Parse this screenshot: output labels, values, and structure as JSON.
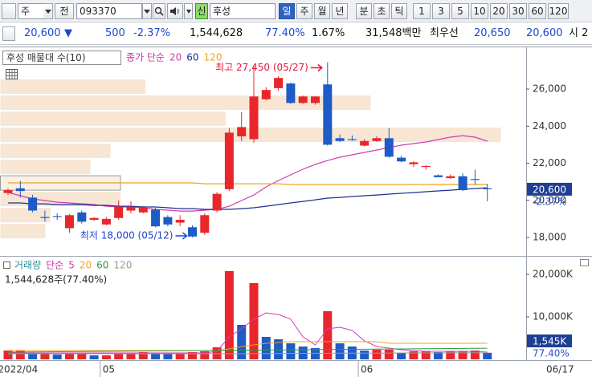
{
  "toolbar": {
    "market": "주",
    "type": "전",
    "code": "093370",
    "badge": "신",
    "name": "후성",
    "periods": [
      "일",
      "주",
      "월",
      "년",
      "분",
      "초",
      "틱"
    ],
    "intervals": [
      "1",
      "3",
      "5",
      "10",
      "20",
      "30",
      "60",
      "120"
    ]
  },
  "quote": {
    "price": "20,600",
    "arrow": "▼",
    "change": "500",
    "change_rate": "-2.37%",
    "volume": "1,544,628",
    "volume_rate": "77.40%",
    "turnover": "1.67%",
    "amount": "31,548백만",
    "best_label": "최우선",
    "ask": "20,650",
    "bid": "20,600",
    "extra": "시 2"
  },
  "chart_data": [
    {
      "type": "candlestick",
      "title": "후성 매물대 수(10)",
      "ma_label": "종가 단순",
      "ma_label_color": "#c8309a",
      "up_color": "#e8262b",
      "down_color": "#1f5bc6",
      "open": [
        20400,
        20650,
        20150,
        19100,
        19150,
        18500,
        19350,
        18950,
        18700,
        19050,
        19450,
        19350,
        19500,
        19100,
        18800,
        18550,
        18250,
        19450,
        20600,
        23450,
        23300,
        25450,
        26050,
        26300,
        25250,
        25250,
        26250,
        23350,
        23300,
        22950,
        23200,
        23350,
        22300,
        21950,
        21800,
        21350,
        21200,
        21300,
        21150,
        20650
      ],
      "high": [
        20650,
        21050,
        20300,
        19450,
        19300,
        19250,
        19450,
        19100,
        19100,
        20000,
        19950,
        19700,
        19600,
        19200,
        19200,
        18650,
        19300,
        20450,
        23900,
        24750,
        27250,
        26100,
        26700,
        26350,
        25650,
        25600,
        27450,
        23550,
        23500,
        23300,
        23450,
        23900,
        22400,
        22100,
        21900,
        21400,
        21400,
        21450,
        21650,
        20900
      ],
      "low": [
        20300,
        20150,
        19350,
        18850,
        18950,
        18250,
        18750,
        18900,
        18650,
        18950,
        19300,
        19300,
        18550,
        18600,
        18600,
        18000,
        18150,
        19350,
        20500,
        23200,
        23100,
        25400,
        25900,
        25200,
        25200,
        25150,
        22950,
        23150,
        23200,
        22900,
        23150,
        22300,
        22050,
        21800,
        21650,
        21250,
        21150,
        20500,
        20850,
        19950
      ],
      "close": [
        20550,
        20500,
        19450,
        19050,
        19100,
        19200,
        18850,
        19050,
        19000,
        19650,
        19650,
        19600,
        18600,
        18700,
        18950,
        18050,
        19200,
        20350,
        23650,
        23950,
        25600,
        25950,
        26600,
        25250,
        25600,
        25600,
        23000,
        23200,
        23250,
        23200,
        23350,
        22350,
        22100,
        22050,
        21850,
        21250,
        21300,
        20550,
        21100,
        20600
      ],
      "series": [
        {
          "name": "20",
          "color": "#d23cb4",
          "values": [
            20420,
            20250,
            20075,
            19990,
            19900,
            19860,
            19815,
            19775,
            19685,
            19645,
            19645,
            19600,
            19515,
            19470,
            19425,
            19425,
            19470,
            19515,
            19685,
            19990,
            20290,
            20725,
            21070,
            21375,
            21675,
            21935,
            22150,
            22325,
            22455,
            22585,
            22715,
            22845,
            22975,
            23060,
            23145,
            23275,
            23405,
            23490,
            23405,
            23190
          ]
        },
        {
          "name": "60",
          "color": "#1f2f8f",
          "values": [
            19860,
            19860,
            19815,
            19815,
            19775,
            19775,
            19775,
            19730,
            19730,
            19685,
            19685,
            19645,
            19645,
            19600,
            19555,
            19555,
            19515,
            19515,
            19515,
            19555,
            19600,
            19685,
            19775,
            19860,
            19945,
            20030,
            20120,
            20160,
            20205,
            20250,
            20290,
            20335,
            20380,
            20420,
            20465,
            20510,
            20550,
            20595,
            20640,
            20680
          ]
        },
        {
          "name": "120",
          "color": "#f0a41c",
          "values": [
            20940,
            20940,
            20940,
            20940,
            20940,
            20940,
            20940,
            20940,
            20940,
            20940,
            20940,
            20940,
            20940,
            20940,
            20940,
            20940,
            20895,
            20895,
            20895,
            20895,
            20895,
            20895,
            20895,
            20855,
            20855,
            20855,
            20855,
            20855,
            20855,
            20855,
            20855,
            20855,
            20855,
            20855,
            20855,
            20855,
            20855,
            20855,
            20855,
            20855
          ]
        }
      ],
      "volume_profile": {
        "color": "#f6e6d3",
        "bins": [
          17910,
          18775,
          19640,
          20505,
          21370,
          22235,
          23100,
          23965,
          24830,
          25695,
          26560
        ],
        "values": [
          9,
          10,
          24,
          24,
          18,
          22,
          100,
          45,
          74,
          29
        ]
      },
      "ylim": [
        17050,
        28120
      ],
      "yticks": [
        {
          "value": 18000,
          "label": "18,000"
        },
        {
          "value": 20000,
          "label": "20,000"
        },
        {
          "value": 22000,
          "label": "22,000"
        },
        {
          "value": 24000,
          "label": "24,000"
        },
        {
          "value": 26000,
          "label": "26,000"
        }
      ],
      "last_price": {
        "value": 20600,
        "label": "20,600"
      },
      "last_change": "-2.37%",
      "annotations": [
        {
          "label": "최고 27,450 (05/27)",
          "value": 27450,
          "color": "#e3173f"
        },
        {
          "label": "최저 18,000 (05/12)",
          "value": 18000,
          "color": "#1c3fd6"
        }
      ]
    },
    {
      "type": "bar",
      "title": "거래량",
      "title_color": "#2a8c9c",
      "ma_label": "단순",
      "ma_label_color": "#c8309a",
      "info": "1,544,628주(77.40%)",
      "up_color": "#e8262b",
      "down_color": "#1f5bc6",
      "categories": [
        "2022/04",
        null,
        null,
        null,
        null,
        null,
        null,
        null,
        "05",
        null,
        null,
        null,
        null,
        null,
        null,
        null,
        null,
        null,
        null,
        null,
        null,
        null,
        null,
        null,
        null,
        null,
        null,
        null,
        null,
        "06",
        null,
        null,
        null,
        null,
        null,
        null,
        null,
        null,
        null,
        "06/17"
      ],
      "values": [
        2075,
        2075,
        1320,
        1320,
        1130,
        1320,
        1320,
        940,
        940,
        1510,
        1510,
        1700,
        1510,
        1320,
        1320,
        1700,
        1890,
        2830,
        20760,
        8115,
        17925,
        5285,
        4720,
        3775,
        3020,
        2640,
        11320,
        3775,
        3020,
        2075,
        2265,
        2265,
        1510,
        1890,
        1890,
        1700,
        1890,
        1890,
        2075,
        1545
      ],
      "series": [
        {
          "name": "5",
          "color": "#d23cb4",
          "values": [
            1510,
            1510,
            1510,
            1510,
            1510,
            1510,
            1510,
            1510,
            1510,
            1510,
            1510,
            1510,
            1510,
            1510,
            1510,
            1510,
            1510,
            1887,
            5284,
            7171,
            9435,
            10945,
            10567,
            9435,
            5284,
            3397,
            7171,
            7548,
            6793,
            4340,
            3019,
            2642,
            2264,
            2076,
            1887,
            1887,
            1887,
            1887,
            1887,
            1698
          ]
        },
        {
          "name": "20",
          "color": "#f0a41c",
          "values": [
            2076,
            2076,
            2076,
            2076,
            2076,
            2076,
            2076,
            2076,
            2076,
            2076,
            2076,
            2076,
            2076,
            2076,
            2076,
            2076,
            2076,
            2076,
            2453,
            3019,
            3397,
            3774,
            3963,
            4151,
            4151,
            4151,
            4151,
            4151,
            4151,
            4151,
            4151,
            3774,
            3774,
            3774,
            3774,
            3774,
            3774,
            3774,
            3774,
            3774
          ]
        },
        {
          "name": "60",
          "color": "#2e9a3c",
          "values": [
            1700,
            1720,
            1745,
            1770,
            1790,
            1815,
            1840,
            1860,
            1885,
            1910,
            1935,
            1955,
            1980,
            2005,
            2030,
            2050,
            2075,
            2100,
            2125,
            2150,
            2170,
            2195,
            2220,
            2245,
            2265,
            2290,
            2315,
            2340,
            2360,
            2385,
            2410,
            2430,
            2455,
            2480,
            2500,
            2525,
            2550,
            2575,
            2600,
            2620
          ]
        },
        {
          "name": "120",
          "color": "#9a9a9a",
          "values": [
            1320,
            1320,
            1320,
            1320,
            1320,
            1320,
            1320,
            1320,
            1320,
            1320,
            1320,
            1320,
            1320,
            1320,
            1320,
            1320,
            1320,
            1320,
            1320,
            1320,
            1360,
            1380,
            1400,
            1410,
            1420,
            1430,
            1440,
            1450,
            1460,
            1470,
            1480,
            1490,
            1500,
            1505,
            1510,
            1515,
            1520,
            1525,
            1530,
            1535
          ]
        }
      ],
      "ylim": [
        0,
        23770
      ],
      "yticks": [
        {
          "value": 10000,
          "label": "10,000K"
        },
        {
          "value": 20000,
          "label": "20,000K"
        }
      ],
      "last_value": {
        "value": 1545,
        "label": "1,545K"
      },
      "last_ratio": "77.40%"
    }
  ]
}
